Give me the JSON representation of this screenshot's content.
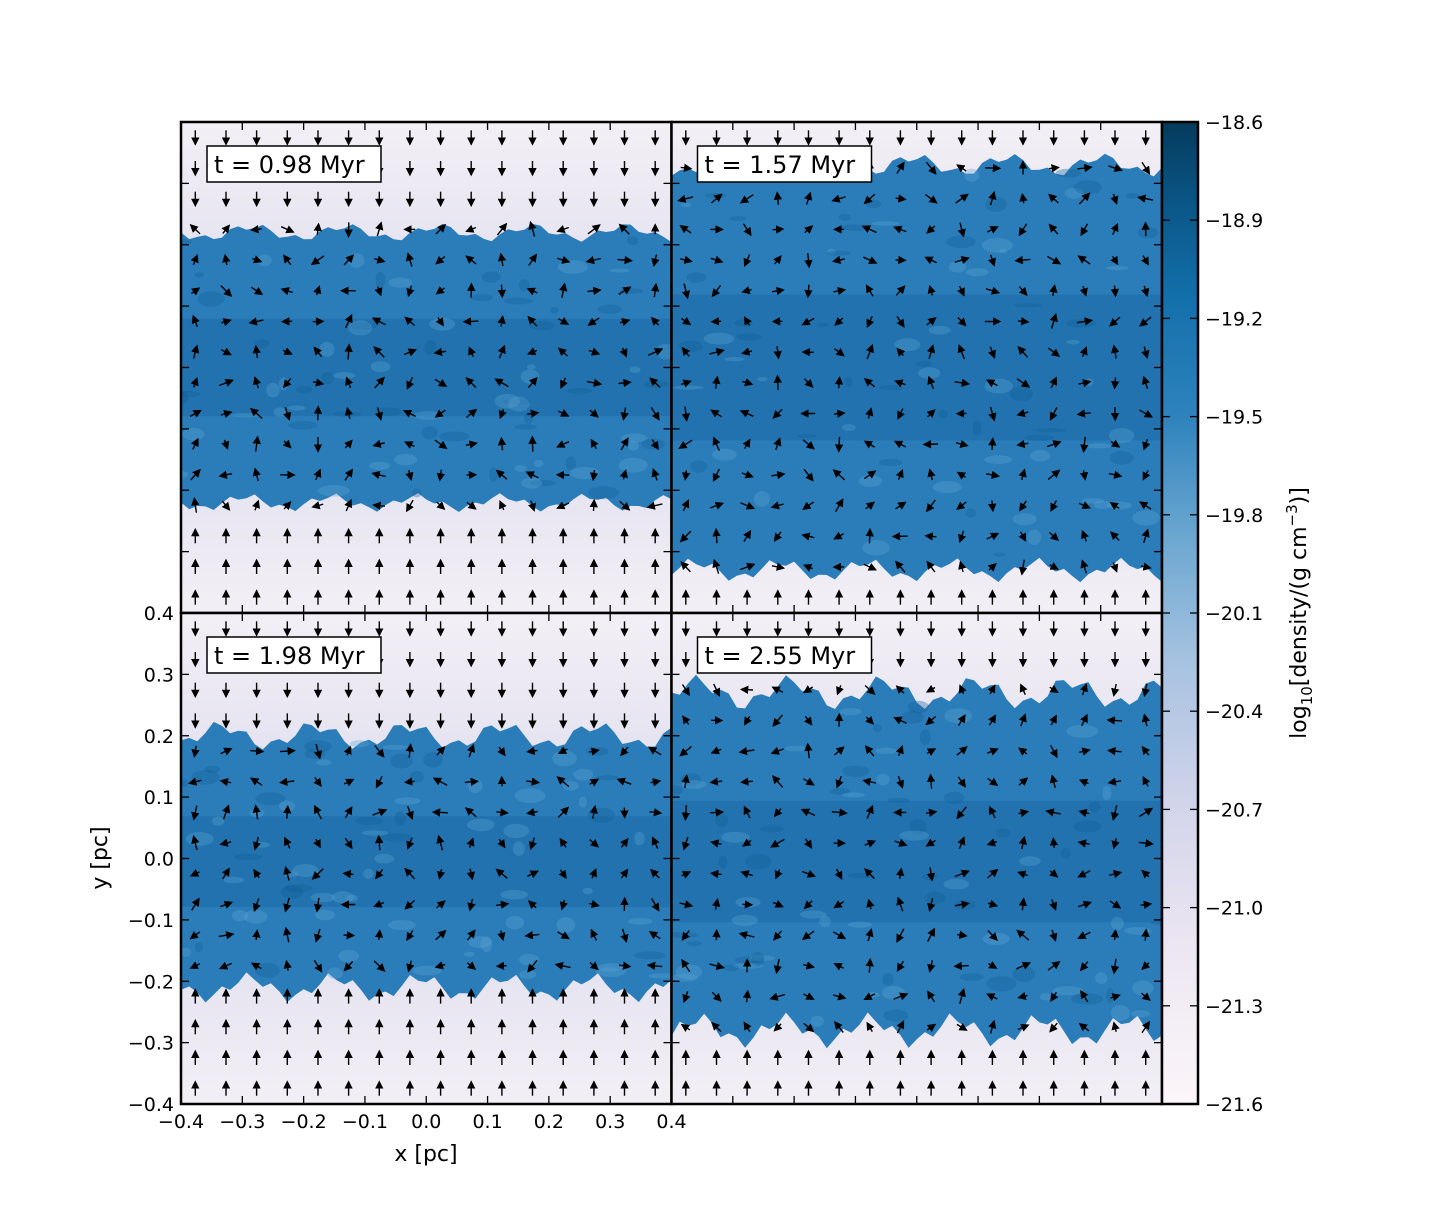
{
  "chart_data": {
    "type": "heatmap",
    "panels": [
      {
        "label": "t = 0.98 Myr",
        "time": 0.98,
        "slab_top": 0.22,
        "slab_bottom": -0.22
      },
      {
        "label": "t = 1.57 Myr",
        "time": 1.57,
        "slab_top": 0.33,
        "slab_bottom": -0.33
      },
      {
        "label": "t = 1.98 Myr",
        "time": 1.98,
        "slab_top": 0.2,
        "slab_bottom": -0.21
      },
      {
        "label": "t = 2.55 Myr",
        "time": 2.55,
        "slab_top": 0.27,
        "slab_bottom": -0.28
      }
    ],
    "xlabel": "x [pc]",
    "ylabel": "y [pc]",
    "xlim": [
      -0.4,
      0.4
    ],
    "ylim": [
      -0.4,
      0.4
    ],
    "x_ticks": [
      "−0.4",
      "−0.3",
      "−0.2",
      "−0.1",
      "0.0",
      "0.1",
      "0.2",
      "0.3",
      "0.4"
    ],
    "y_ticks": [
      "−0.4",
      "−0.3",
      "−0.2",
      "−0.1",
      "0.0",
      "0.1",
      "0.2",
      "0.3",
      "0.4"
    ],
    "colorbar": {
      "label_prefix": "log",
      "label_sub": "10",
      "label_main": "[density/(g cm",
      "label_sup": "−3",
      "label_suffix": ")]",
      "range": [
        -21.6,
        -18.6
      ],
      "ticks": [
        "−18.6",
        "−18.9",
        "−19.2",
        "−19.5",
        "−19.8",
        "−20.1",
        "−20.4",
        "−20.7",
        "−21.0",
        "−21.3",
        "−21.6"
      ],
      "colors": [
        "#fcf6fa",
        "#dcdced",
        "#a9c6e2",
        "#5b9fcb",
        "#1f74b1",
        "#0b4f80",
        "#053b5c"
      ]
    },
    "field": "velocity vectors (quiver)"
  }
}
